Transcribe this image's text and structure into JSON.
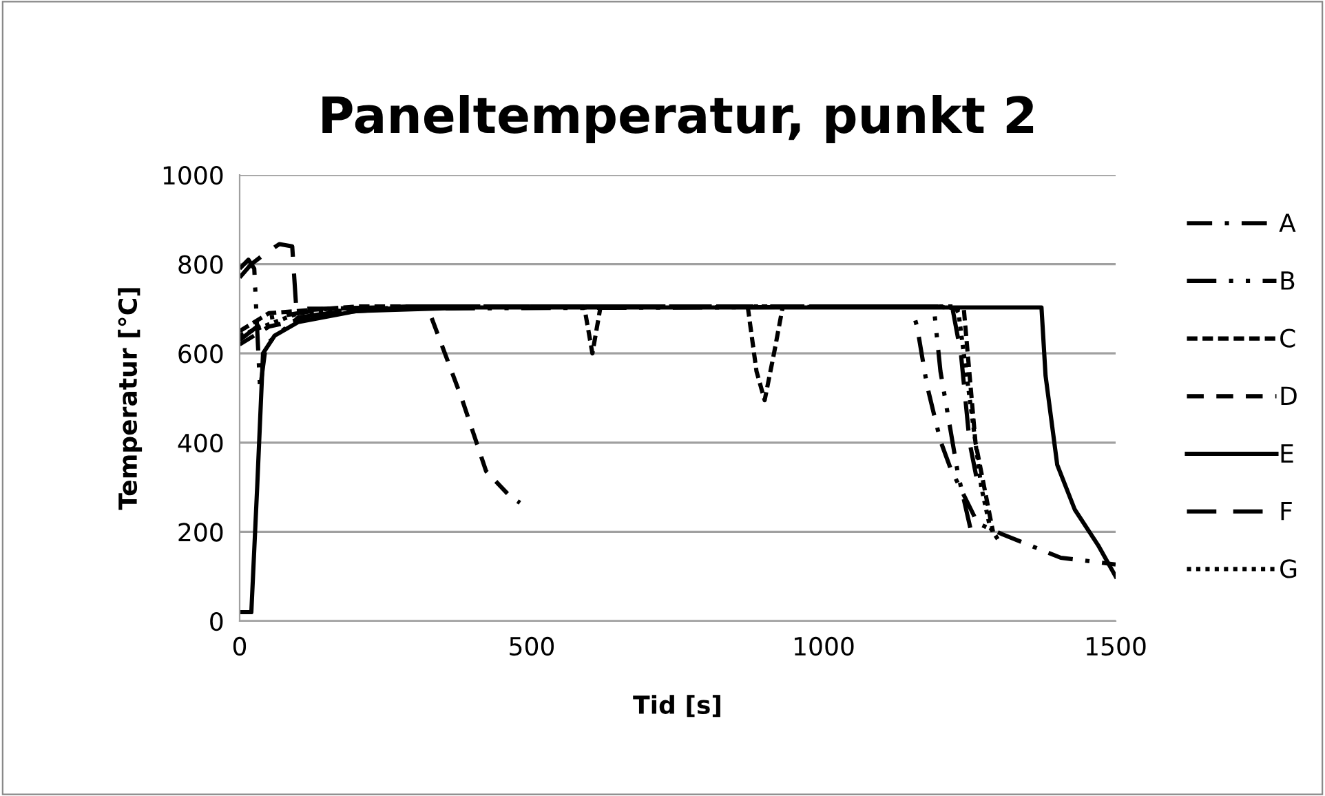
{
  "chart_data": {
    "type": "line",
    "title": "Paneltemperatur, punkt 2",
    "xlabel": "Tid [s]",
    "ylabel": "Temperatur [°C]",
    "xlim": [
      0,
      1500
    ],
    "xticks": [
      0,
      500,
      1000,
      1500
    ],
    "ylim": [
      0,
      1000
    ],
    "yticks": [
      0,
      200,
      400,
      600,
      800,
      1000
    ],
    "grid": "y",
    "legend": "right",
    "marker": "none",
    "series": [
      {
        "name": "A",
        "color": "#000000",
        "line_style": "dashdot",
        "x": [
          0,
          50,
          150,
          300,
          1150,
          1160,
          1177,
          1200,
          1217,
          1264,
          1307,
          1406,
          1500
        ],
        "values": [
          630,
          680,
          700,
          705,
          705,
          660,
          528,
          404,
          343,
          219,
          194,
          142,
          127
        ]
      },
      {
        "name": "B",
        "color": "#000000",
        "line_style": "dashdotdot",
        "x": [
          0,
          15,
          25,
          35,
          45,
          100,
          200,
          1180,
          1189,
          1200,
          1230,
          1252
        ],
        "values": [
          790,
          810,
          790,
          520,
          620,
          680,
          700,
          705,
          700,
          560,
          330,
          204
        ]
      },
      {
        "name": "C",
        "color": "#000000",
        "line_style": "shortdash",
        "x": [
          0,
          50,
          200,
          590,
          604,
          618,
          870,
          885,
          899,
          915,
          930,
          1190,
          1240,
          1260,
          1290
        ],
        "values": [
          650,
          690,
          705,
          705,
          600,
          705,
          705,
          560,
          495,
          600,
          705,
          705,
          700,
          400,
          200
        ]
      },
      {
        "name": "D",
        "color": "#000000",
        "line_style": "dashed",
        "x": [
          0,
          50,
          150,
          320,
          328,
          380,
          422,
          462,
          480
        ],
        "values": [
          620,
          660,
          690,
          705,
          682,
          500,
          336,
          281,
          265
        ]
      },
      {
        "name": "E",
        "color": "#000000",
        "line_style": "solid",
        "x": [
          0,
          20,
          30,
          40,
          60,
          100,
          200,
          400,
          1373,
          1380,
          1400,
          1430,
          1470,
          1500
        ],
        "values": [
          20,
          20,
          300,
          600,
          640,
          670,
          695,
          703,
          703,
          550,
          350,
          250,
          170,
          100
        ]
      },
      {
        "name": "F",
        "color": "#000000",
        "line_style": "longdash",
        "x": [
          0,
          20,
          40,
          68,
          90,
          97,
          150,
          300,
          1220,
          1235,
          1250,
          1265
        ],
        "values": [
          770,
          800,
          820,
          845,
          840,
          700,
          700,
          705,
          705,
          600,
          400,
          300
        ]
      },
      {
        "name": "G",
        "color": "#000000",
        "line_style": "dotted",
        "x": [
          0,
          100,
          300,
          1225,
          1231,
          1250,
          1270,
          1285,
          1300
        ],
        "values": [
          640,
          690,
          705,
          705,
          690,
          500,
          300,
          210,
          180
        ]
      }
    ]
  }
}
